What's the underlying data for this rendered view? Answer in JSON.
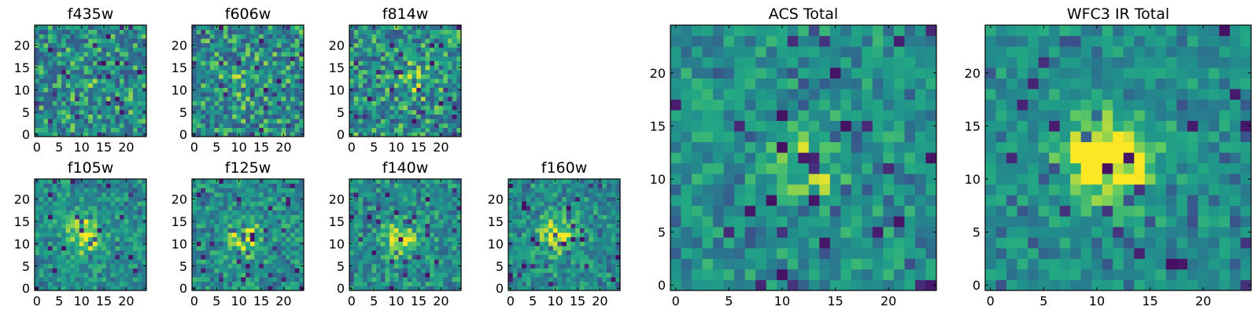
{
  "chart_data": [
    {
      "type": "heatmap",
      "title": "f435w",
      "size": 25,
      "xticks": [
        0,
        5,
        10,
        15,
        20
      ],
      "yticks": [
        0,
        5,
        10,
        15,
        20
      ],
      "xlim": [
        -0.5,
        24.5
      ],
      "ylim": [
        -0.5,
        24.5
      ],
      "colormap": "viridis",
      "noise": 0.85,
      "center": [
        11,
        11
      ],
      "peak": 0.05,
      "sigma": 3.0,
      "seed": 11
    },
    {
      "type": "heatmap",
      "title": "f606w",
      "size": 25,
      "xticks": [
        0,
        5,
        10,
        15,
        20
      ],
      "yticks": [
        0,
        5,
        10,
        15,
        20
      ],
      "xlim": [
        -0.5,
        24.5
      ],
      "ylim": [
        -0.5,
        24.5
      ],
      "colormap": "viridis",
      "noise": 0.85,
      "center": [
        12,
        12
      ],
      "peak": 0.1,
      "sigma": 3.0,
      "seed": 23
    },
    {
      "type": "heatmap",
      "title": "f814w",
      "size": 25,
      "xticks": [
        0,
        5,
        10,
        15,
        20
      ],
      "yticks": [
        0,
        5,
        10,
        15,
        20
      ],
      "xlim": [
        -0.5,
        24.5
      ],
      "ylim": [
        -0.5,
        24.5
      ],
      "colormap": "viridis",
      "noise": 0.85,
      "center": [
        14,
        12
      ],
      "peak": 0.15,
      "sigma": 2.5,
      "seed": 37
    },
    {
      "type": "heatmap",
      "title": "f105w",
      "size": 25,
      "xticks": [
        0,
        5,
        10,
        15,
        20
      ],
      "yticks": [
        0,
        5,
        10,
        15,
        20
      ],
      "xlim": [
        -0.5,
        24.5
      ],
      "ylim": [
        -0.5,
        24.5
      ],
      "colormap": "viridis",
      "noise": 0.55,
      "center": [
        11,
        12
      ],
      "peak": 0.35,
      "sigma": 3.0,
      "seed": 41
    },
    {
      "type": "heatmap",
      "title": "f125w",
      "size": 25,
      "xticks": [
        0,
        5,
        10,
        15,
        20
      ],
      "yticks": [
        0,
        5,
        10,
        15,
        20
      ],
      "xlim": [
        -0.5,
        24.5
      ],
      "ylim": [
        -0.5,
        24.5
      ],
      "colormap": "viridis",
      "noise": 0.6,
      "center": [
        11,
        11
      ],
      "peak": 0.3,
      "sigma": 3.0,
      "seed": 53
    },
    {
      "type": "heatmap",
      "title": "f140w",
      "size": 25,
      "xticks": [
        0,
        5,
        10,
        15,
        20
      ],
      "yticks": [
        0,
        5,
        10,
        15,
        20
      ],
      "xlim": [
        -0.5,
        24.5
      ],
      "ylim": [
        -0.5,
        24.5
      ],
      "colormap": "viridis",
      "noise": 0.6,
      "center": [
        11,
        11
      ],
      "peak": 0.3,
      "sigma": 2.8,
      "seed": 67
    },
    {
      "type": "heatmap",
      "title": "f160w",
      "size": 25,
      "xticks": [
        0,
        5,
        10,
        15,
        20
      ],
      "yticks": [
        0,
        5,
        10,
        15,
        20
      ],
      "xlim": [
        -0.5,
        24.5
      ],
      "ylim": [
        -0.5,
        24.5
      ],
      "colormap": "viridis",
      "noise": 0.6,
      "center": [
        11,
        12
      ],
      "peak": 0.3,
      "sigma": 3.0,
      "seed": 71
    },
    {
      "type": "heatmap",
      "title": "ACS Total",
      "size": 25,
      "xticks": [
        0,
        5,
        10,
        15,
        20
      ],
      "yticks": [
        0,
        5,
        10,
        15,
        20
      ],
      "xlim": [
        -0.5,
        24.5
      ],
      "ylim": [
        -0.5,
        24.5
      ],
      "colormap": "viridis",
      "noise": 0.55,
      "center": [
        13,
        11
      ],
      "peak": 0.22,
      "sigma": 3.0,
      "seed": 83
    },
    {
      "type": "heatmap",
      "title": "WFC3 IR Total",
      "size": 25,
      "xticks": [
        0,
        5,
        10,
        15,
        20
      ],
      "yticks": [
        0,
        5,
        10,
        15,
        20
      ],
      "xlim": [
        -0.5,
        24.5
      ],
      "ylim": [
        -0.5,
        24.5
      ],
      "colormap": "viridis",
      "noise": 0.45,
      "center": [
        11,
        12
      ],
      "peak": 0.5,
      "sigma": 3.0,
      "seed": 97
    }
  ]
}
